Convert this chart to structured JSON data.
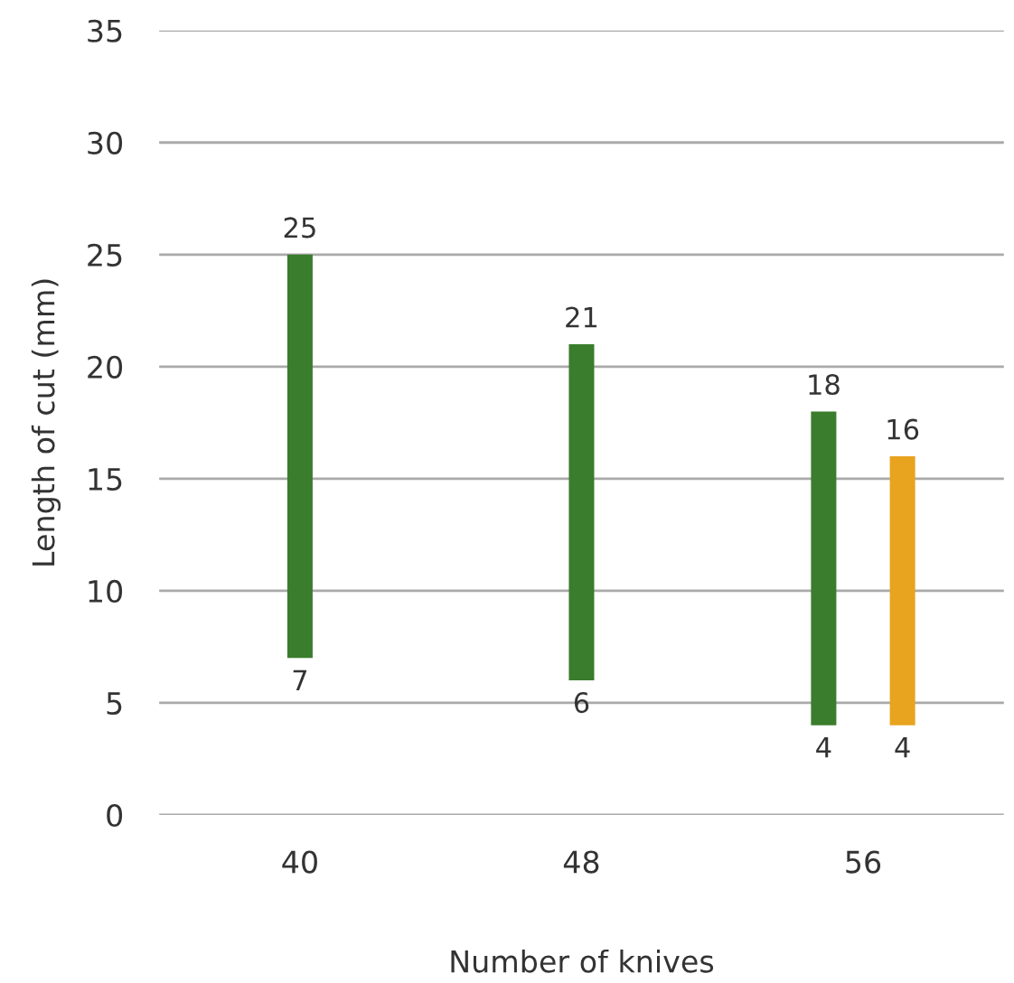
{
  "chart_data": {
    "type": "bar",
    "xlabel": "Number of knives",
    "ylabel": "Length of cut (mm)",
    "categories": [
      "40",
      "48",
      "56"
    ],
    "series": [
      {
        "color": "#3a7d2c",
        "values": [
          18,
          15,
          14
        ],
        "base": [
          7,
          6,
          4
        ],
        "value_labels": [
          "25",
          "21",
          "18"
        ]
      },
      {
        "color": "#e8a31f",
        "values": [
          null,
          null,
          12
        ],
        "base": [
          null,
          null,
          4
        ],
        "value_labels": [
          null,
          null,
          "16"
        ]
      }
    ],
    "annotations": [
      {
        "text": "7",
        "x": "40",
        "y": 7
      },
      {
        "text": "6",
        "x": "48",
        "y": 6
      },
      "4",
      "4"
    ],
    "ylim": [
      0,
      35
    ],
    "yticks": [
      0,
      5,
      10,
      15,
      20,
      25,
      30,
      35
    ],
    "grid": "y",
    "legend": false
  }
}
